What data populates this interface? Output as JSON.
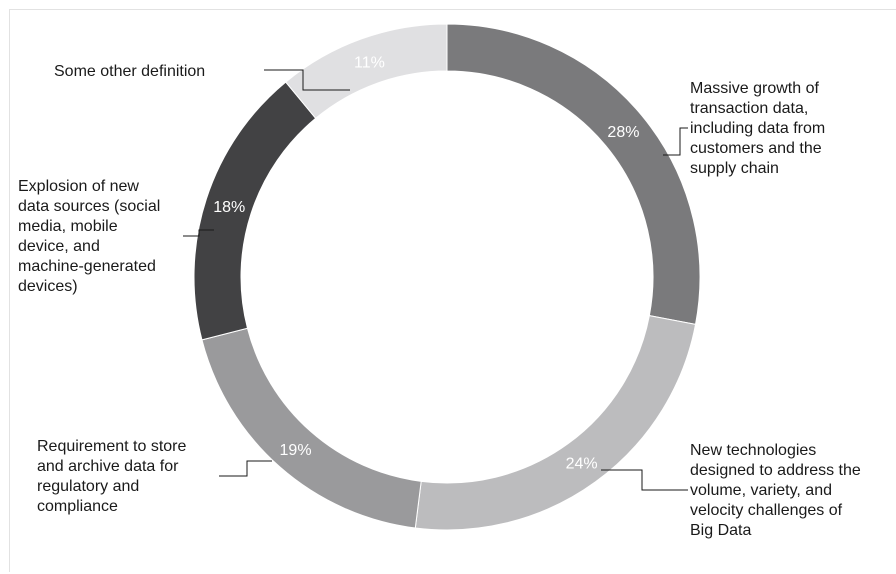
{
  "chart_data": {
    "type": "pie",
    "style": "donut",
    "title": "",
    "legend": "none",
    "slices": [
      {
        "label": "Massive growth of transaction data, including data from customers and the supply chain",
        "lines": [
          "Massive growth of",
          "transaction data,",
          "including data from",
          "customers and the",
          "supply chain"
        ],
        "value": 28,
        "display": "28%",
        "color": "#7a7a7c"
      },
      {
        "label": "New technologies designed to address the volume, variety, and velocity challenges of Big Data",
        "lines": [
          "New technologies",
          "designed to address the",
          "volume, variety, and",
          "velocity challenges of",
          "Big Data"
        ],
        "value": 24,
        "display": "24%",
        "color": "#bcbcbe"
      },
      {
        "label": "Requirement to store and archive data for regulatory and compliance",
        "lines": [
          "Requirement to store",
          "and archive data for",
          "regulatory and",
          "compliance"
        ],
        "value": 19,
        "display": "19%",
        "color": "#9a9a9c"
      },
      {
        "label": "Explosion of new data sources (social media, mobile device, and machine-generated devices)",
        "lines": [
          "Explosion of new",
          "data sources (social",
          "media, mobile",
          "device, and",
          "machine-generated",
          "devices)"
        ],
        "value": 18,
        "display": "18%",
        "color": "#424244"
      },
      {
        "label": "Some other definition",
        "lines": [
          "Some other definition"
        ],
        "value": 11,
        "display": "11%",
        "color": "#e0e0e2"
      }
    ]
  }
}
